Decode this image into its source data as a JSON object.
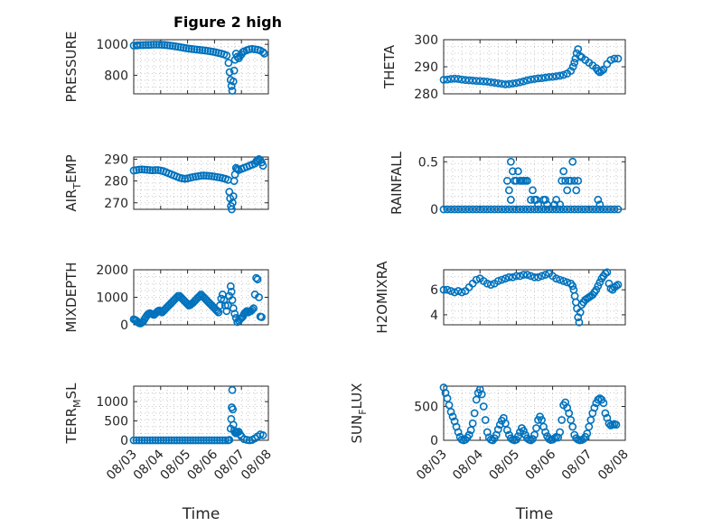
{
  "figure": {
    "title": "Figure 2 high"
  },
  "chart_data": [
    {
      "type": "scatter",
      "ylabel": "PRESSURE",
      "xlabel": "",
      "xlim": [
        0,
        5
      ],
      "ylim": [
        680,
        1030
      ],
      "yticks": [
        800,
        1000
      ],
      "grid": true,
      "title": "Figure 2 high",
      "x": [
        0.0,
        0.1,
        0.15,
        0.25,
        0.35,
        0.45,
        0.55,
        0.65,
        0.75,
        0.85,
        0.95,
        1.05,
        1.15,
        1.25,
        1.35,
        1.45,
        1.55,
        1.65,
        1.75,
        1.85,
        1.95,
        2.05,
        2.15,
        2.25,
        2.35,
        2.45,
        2.55,
        2.65,
        2.75,
        2.85,
        2.95,
        3.05,
        3.15,
        3.25,
        3.35,
        3.45,
        3.52,
        3.56,
        3.6,
        3.63,
        3.66,
        3.7,
        3.73,
        3.76,
        3.8,
        3.85,
        3.9,
        3.95,
        4.0,
        4.05,
        4.1,
        4.2,
        4.3,
        4.4,
        4.5,
        4.6,
        4.7,
        4.8,
        4.85
      ],
      "values": [
        992,
        993,
        994,
        995,
        995,
        996,
        996,
        997,
        998,
        998,
        998,
        997,
        996,
        994,
        992,
        990,
        987,
        984,
        981,
        978,
        975,
        972,
        970,
        968,
        966,
        964,
        962,
        960,
        958,
        955,
        952,
        948,
        944,
        940,
        935,
        928,
        880,
        820,
        770,
        730,
        700,
        760,
        830,
        900,
        940,
        920,
        910,
        925,
        935,
        950,
        955,
        962,
        968,
        970,
        968,
        965,
        960,
        950,
        940
      ]
    },
    {
      "type": "scatter",
      "ylabel": "THETA",
      "xlabel": "",
      "xlim": [
        0,
        5
      ],
      "ylim": [
        280,
        300
      ],
      "yticks": [
        280,
        290,
        300
      ],
      "grid": true,
      "x": [
        0.0,
        0.1,
        0.2,
        0.3,
        0.4,
        0.5,
        0.6,
        0.7,
        0.8,
        0.9,
        1.0,
        1.1,
        1.2,
        1.3,
        1.4,
        1.5,
        1.6,
        1.7,
        1.8,
        1.9,
        2.0,
        2.1,
        2.2,
        2.3,
        2.4,
        2.5,
        2.6,
        2.7,
        2.8,
        2.9,
        3.0,
        3.1,
        3.2,
        3.3,
        3.4,
        3.5,
        3.56,
        3.6,
        3.63,
        3.66,
        3.7,
        3.75,
        3.8,
        3.9,
        4.0,
        4.1,
        4.2,
        4.25,
        4.3,
        4.35,
        4.4,
        4.5,
        4.6,
        4.7,
        4.8
      ],
      "values": [
        285.2,
        285.3,
        285.5,
        285.6,
        285.5,
        285.3,
        285.1,
        285.0,
        284.9,
        284.8,
        284.7,
        284.6,
        284.5,
        284.3,
        284.1,
        283.9,
        283.7,
        283.5,
        283.6,
        283.8,
        284.0,
        284.3,
        284.6,
        285.0,
        285.3,
        285.5,
        285.7,
        285.8,
        286.0,
        286.2,
        286.3,
        286.5,
        286.7,
        287.0,
        287.5,
        288.5,
        290.0,
        291.5,
        293.0,
        295.0,
        296.5,
        294.0,
        293.5,
        292.5,
        291.5,
        290.5,
        289.5,
        288.5,
        288.0,
        288.5,
        289.0,
        291.0,
        292.5,
        293.0,
        293.0
      ]
    },
    {
      "type": "scatter",
      "ylabel": "AIR_TEMP",
      "xlabel": "",
      "xlim": [
        0,
        5
      ],
      "ylim": [
        267,
        291
      ],
      "yticks": [
        270,
        280,
        290
      ],
      "grid": true,
      "x": [
        0.0,
        0.1,
        0.2,
        0.3,
        0.4,
        0.5,
        0.6,
        0.7,
        0.8,
        0.9,
        1.0,
        1.1,
        1.2,
        1.3,
        1.4,
        1.5,
        1.6,
        1.7,
        1.8,
        1.9,
        2.0,
        2.1,
        2.2,
        2.3,
        2.4,
        2.5,
        2.6,
        2.7,
        2.8,
        2.9,
        3.0,
        3.1,
        3.2,
        3.3,
        3.4,
        3.5,
        3.55,
        3.58,
        3.61,
        3.64,
        3.67,
        3.7,
        3.73,
        3.76,
        3.8,
        3.85,
        3.9,
        4.0,
        4.1,
        4.2,
        4.3,
        4.4,
        4.5,
        4.55,
        4.6,
        4.65,
        4.7,
        4.75,
        4.8
      ],
      "values": [
        284.8,
        285.0,
        285.2,
        285.3,
        285.2,
        285.1,
        285.0,
        284.9,
        285.0,
        285.0,
        284.8,
        284.5,
        284.0,
        283.5,
        283.0,
        282.5,
        282.0,
        281.5,
        281.2,
        281.0,
        281.2,
        281.5,
        281.8,
        282.0,
        282.2,
        282.4,
        282.5,
        282.4,
        282.3,
        282.2,
        282.0,
        281.8,
        281.6,
        281.3,
        281.0,
        280.5,
        275.0,
        272.0,
        268.5,
        267.0,
        270.0,
        273.0,
        280.0,
        283.0,
        286.0,
        285.5,
        285.0,
        285.5,
        286.0,
        286.5,
        287.0,
        287.5,
        288.0,
        289.0,
        289.5,
        290.0,
        289.5,
        288.5,
        287.0
      ]
    },
    {
      "type": "scatter",
      "ylabel": "RAINFALL",
      "xlabel": "",
      "xlim": [
        0,
        5
      ],
      "ylim": [
        0,
        0.55
      ],
      "yticks": [
        0,
        0.5
      ],
      "grid": true,
      "x": [
        0.0,
        0.1,
        0.2,
        0.3,
        0.4,
        0.5,
        0.6,
        0.7,
        0.8,
        0.9,
        1.0,
        1.1,
        1.2,
        1.3,
        1.4,
        1.5,
        1.6,
        1.7,
        1.8,
        1.9,
        2.0,
        2.1,
        2.2,
        2.3,
        2.4,
        2.5,
        2.6,
        2.7,
        2.8,
        2.9,
        3.0,
        3.1,
        3.2,
        3.3,
        3.4,
        3.5,
        3.6,
        3.7,
        3.8,
        3.9,
        4.0,
        4.1,
        4.2,
        4.3,
        4.4,
        4.5,
        4.6,
        4.7,
        4.8,
        1.75,
        1.8,
        1.85,
        1.85,
        1.9,
        1.95,
        2.0,
        2.05,
        2.1,
        2.15,
        2.2,
        2.25,
        2.3,
        2.4,
        2.45,
        2.5,
        2.55,
        2.6,
        2.75,
        2.8,
        2.85,
        3.05,
        3.1,
        3.2,
        3.25,
        3.3,
        3.35,
        3.4,
        3.45,
        3.5,
        3.55,
        3.6,
        3.65,
        3.7,
        4.25,
        4.3
      ],
      "values": [
        0,
        0,
        0,
        0,
        0,
        0,
        0,
        0,
        0,
        0,
        0,
        0,
        0,
        0,
        0,
        0,
        0,
        0,
        0,
        0,
        0,
        0,
        0,
        0,
        0,
        0,
        0,
        0,
        0,
        0,
        0,
        0,
        0,
        0,
        0,
        0,
        0,
        0,
        0,
        0,
        0,
        0,
        0,
        0,
        0,
        0,
        0,
        0,
        0,
        0.3,
        0.2,
        0.5,
        0.1,
        0.4,
        0.3,
        0.3,
        0.4,
        0.3,
        0.3,
        0.3,
        0.3,
        0.3,
        0.1,
        0.2,
        0.1,
        0.1,
        0.05,
        0.1,
        0.1,
        0.05,
        0.05,
        0.1,
        0.05,
        0.3,
        0.4,
        0.3,
        0.2,
        0.3,
        0.3,
        0.5,
        0.3,
        0.2,
        0.3,
        0.1,
        0.05
      ]
    },
    {
      "type": "scatter",
      "ylabel": "MIXDEPTH",
      "xlabel": "",
      "xlim": [
        0,
        5
      ],
      "ylim": [
        0,
        2000
      ],
      "yticks": [
        0,
        1000,
        2000
      ],
      "grid": true,
      "x": [
        0.0,
        0.05,
        0.1,
        0.15,
        0.2,
        0.25,
        0.3,
        0.35,
        0.4,
        0.45,
        0.5,
        0.55,
        0.6,
        0.65,
        0.7,
        0.75,
        0.8,
        0.85,
        0.9,
        0.95,
        1.0,
        1.05,
        1.1,
        1.15,
        1.2,
        1.25,
        1.3,
        1.35,
        1.4,
        1.45,
        1.5,
        1.55,
        1.6,
        1.65,
        1.7,
        1.75,
        1.8,
        1.85,
        1.9,
        1.95,
        2.0,
        2.05,
        2.1,
        2.15,
        2.2,
        2.25,
        2.3,
        2.35,
        2.4,
        2.45,
        2.5,
        2.55,
        2.6,
        2.65,
        2.7,
        2.75,
        2.8,
        2.85,
        2.9,
        2.95,
        3.0,
        3.05,
        3.1,
        3.15,
        3.2,
        3.25,
        3.3,
        3.35,
        3.4,
        3.45,
        3.5,
        3.55,
        3.6,
        3.63,
        3.66,
        3.7,
        3.75,
        3.8,
        3.85,
        3.9,
        3.95,
        4.0,
        4.05,
        4.1,
        4.15,
        4.2,
        4.25,
        4.3,
        4.35,
        4.4,
        4.45,
        4.5,
        4.55,
        4.6,
        4.65,
        4.7,
        4.75
      ],
      "values": [
        200,
        180,
        150,
        100,
        60,
        50,
        80,
        120,
        200,
        280,
        350,
        400,
        420,
        400,
        380,
        360,
        400,
        450,
        500,
        520,
        480,
        450,
        500,
        550,
        600,
        650,
        700,
        750,
        800,
        850,
        900,
        950,
        1000,
        1050,
        1050,
        1000,
        950,
        900,
        850,
        800,
        750,
        700,
        720,
        760,
        800,
        850,
        900,
        950,
        1000,
        1050,
        1100,
        1050,
        1000,
        950,
        900,
        850,
        800,
        750,
        700,
        650,
        600,
        550,
        500,
        450,
        700,
        950,
        1100,
        900,
        700,
        500,
        700,
        1050,
        1400,
        1200,
        900,
        600,
        400,
        250,
        100,
        150,
        200,
        250,
        300,
        400,
        450,
        500,
        450,
        480,
        500,
        550,
        600,
        1100,
        1700,
        1650,
        1000,
        300,
        280
      ]
    },
    {
      "type": "scatter",
      "ylabel": "H2OMIXRA",
      "xlabel": "",
      "xlim": [
        0,
        5
      ],
      "ylim": [
        3.2,
        7.6
      ],
      "yticks": [
        4,
        6
      ],
      "grid": true,
      "x": [
        0.0,
        0.1,
        0.2,
        0.3,
        0.4,
        0.5,
        0.6,
        0.7,
        0.8,
        0.9,
        1.0,
        1.1,
        1.2,
        1.3,
        1.4,
        1.5,
        1.6,
        1.7,
        1.8,
        1.9,
        2.0,
        2.1,
        2.2,
        2.3,
        2.4,
        2.5,
        2.6,
        2.7,
        2.8,
        2.9,
        3.0,
        3.1,
        3.2,
        3.3,
        3.4,
        3.5,
        3.55,
        3.58,
        3.61,
        3.64,
        3.67,
        3.7,
        3.73,
        3.76,
        3.8,
        3.85,
        3.9,
        3.95,
        4.0,
        4.05,
        4.1,
        4.15,
        4.2,
        4.25,
        4.3,
        4.35,
        4.4,
        4.45,
        4.5,
        4.55,
        4.6,
        4.65,
        4.7,
        4.75,
        4.8
      ],
      "values": [
        6.0,
        6.0,
        5.9,
        5.8,
        5.9,
        5.8,
        5.9,
        6.2,
        6.5,
        6.8,
        6.9,
        6.7,
        6.5,
        6.4,
        6.5,
        6.7,
        6.8,
        6.9,
        7.0,
        7.0,
        7.1,
        7.1,
        7.2,
        7.2,
        7.1,
        7.0,
        7.0,
        7.1,
        7.2,
        7.3,
        7.1,
        6.9,
        6.8,
        6.7,
        6.6,
        6.5,
        6.3,
        6.0,
        5.5,
        5.0,
        4.5,
        3.8,
        3.4,
        4.2,
        4.8,
        5.0,
        5.2,
        5.3,
        5.4,
        5.5,
        5.6,
        5.8,
        6.0,
        6.3,
        6.6,
        6.9,
        7.1,
        7.3,
        7.4,
        6.5,
        6.1,
        6.0,
        6.2,
        6.3,
        6.4
      ]
    },
    {
      "type": "scatter",
      "ylabel": "TERR_MSL",
      "xlabel": "Time",
      "xlim": [
        0,
        5
      ],
      "ylim": [
        0,
        1400
      ],
      "yticks": [
        0,
        500,
        1000
      ],
      "grid": true,
      "x": [
        0.0,
        0.1,
        0.2,
        0.3,
        0.4,
        0.5,
        0.6,
        0.7,
        0.8,
        0.9,
        1.0,
        1.1,
        1.2,
        1.3,
        1.4,
        1.5,
        1.6,
        1.7,
        1.8,
        1.9,
        2.0,
        2.1,
        2.2,
        2.3,
        2.4,
        2.5,
        2.6,
        2.7,
        2.8,
        2.9,
        3.0,
        3.1,
        3.2,
        3.3,
        3.4,
        3.5,
        3.55,
        3.6,
        3.62,
        3.64,
        3.66,
        3.68,
        3.7,
        3.73,
        3.76,
        3.8,
        3.85,
        3.9,
        3.95,
        4.0,
        4.1,
        4.2,
        4.3,
        4.4,
        4.5,
        4.6,
        4.7,
        4.8
      ],
      "values": [
        0,
        0,
        0,
        0,
        0,
        0,
        0,
        0,
        0,
        0,
        0,
        0,
        0,
        0,
        0,
        0,
        0,
        0,
        0,
        0,
        0,
        0,
        0,
        0,
        0,
        0,
        0,
        0,
        0,
        0,
        0,
        0,
        0,
        0,
        0,
        0,
        10,
        300,
        550,
        850,
        1300,
        800,
        400,
        250,
        200,
        180,
        200,
        220,
        150,
        100,
        30,
        10,
        0,
        10,
        50,
        100,
        150,
        130
      ]
    },
    {
      "type": "scatter",
      "ylabel": "SUN_FLUX",
      "xlabel": "Time",
      "xlim": [
        0,
        5
      ],
      "ylim": [
        0,
        800
      ],
      "yticks": [
        0,
        500
      ],
      "grid": true,
      "x": [
        0.0,
        0.05,
        0.1,
        0.15,
        0.2,
        0.25,
        0.3,
        0.35,
        0.4,
        0.45,
        0.5,
        0.55,
        0.6,
        0.65,
        0.7,
        0.75,
        0.8,
        0.85,
        0.9,
        0.95,
        1.0,
        1.05,
        1.1,
        1.15,
        1.2,
        1.25,
        1.3,
        1.35,
        1.4,
        1.45,
        1.5,
        1.55,
        1.6,
        1.65,
        1.7,
        1.75,
        1.8,
        1.85,
        1.9,
        1.95,
        2.0,
        2.05,
        2.1,
        2.15,
        2.2,
        2.25,
        2.3,
        2.35,
        2.4,
        2.45,
        2.5,
        2.55,
        2.6,
        2.65,
        2.7,
        2.75,
        2.8,
        2.85,
        2.9,
        2.95,
        3.0,
        3.05,
        3.1,
        3.15,
        3.2,
        3.25,
        3.3,
        3.35,
        3.4,
        3.45,
        3.5,
        3.55,
        3.6,
        3.65,
        3.7,
        3.75,
        3.8,
        3.85,
        3.9,
        3.95,
        4.0,
        4.05,
        4.1,
        4.15,
        4.2,
        4.25,
        4.3,
        4.35,
        4.4,
        4.45,
        4.5,
        4.55,
        4.6,
        4.65,
        4.7,
        4.75
      ],
      "values": [
        780,
        700,
        620,
        520,
        420,
        350,
        280,
        200,
        120,
        50,
        10,
        0,
        10,
        40,
        80,
        150,
        250,
        400,
        600,
        700,
        750,
        680,
        500,
        300,
        120,
        40,
        10,
        0,
        30,
        80,
        160,
        230,
        290,
        330,
        250,
        150,
        80,
        30,
        10,
        0,
        10,
        60,
        120,
        180,
        140,
        80,
        30,
        10,
        0,
        20,
        80,
        180,
        300,
        350,
        300,
        200,
        120,
        60,
        20,
        5,
        10,
        30,
        50,
        40,
        120,
        300,
        520,
        560,
        480,
        400,
        300,
        200,
        80,
        30,
        10,
        0,
        5,
        20,
        50,
        100,
        200,
        300,
        400,
        480,
        550,
        600,
        620,
        600,
        550,
        400,
        330,
        250,
        220,
        230,
        240,
        230
      ]
    }
  ],
  "xaxis": {
    "ticks": [
      "08/03",
      "08/04",
      "08/05",
      "08/06",
      "08/07",
      "08/08"
    ]
  }
}
